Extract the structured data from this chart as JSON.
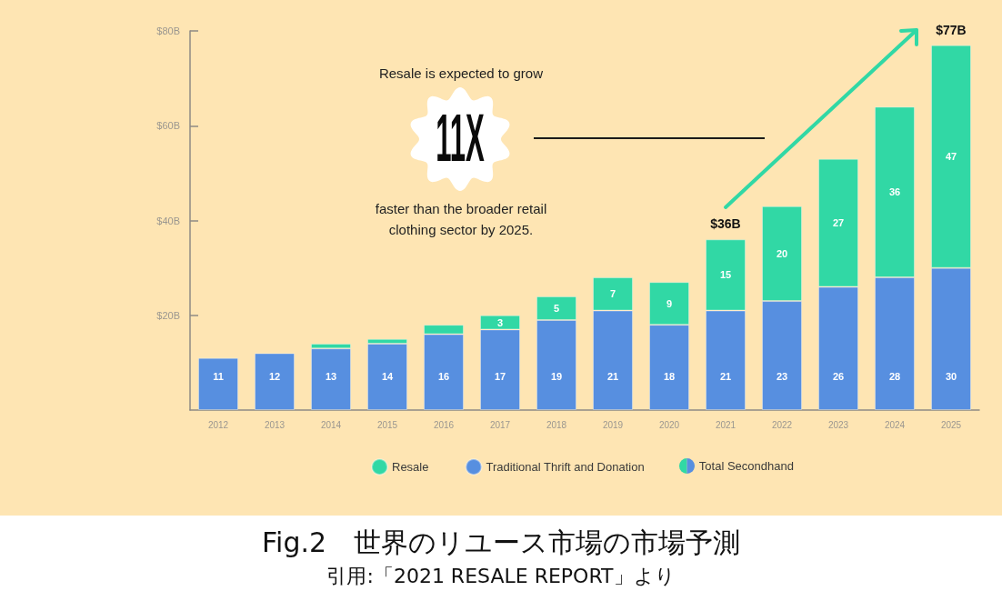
{
  "chart_data": {
    "type": "bar",
    "title": "Fig.2　世界のリユース市場の市場予測",
    "categories": [
      "2012",
      "2013",
      "2014",
      "2015",
      "2016",
      "2017",
      "2018",
      "2019",
      "2020",
      "2021",
      "2022",
      "2023",
      "2024",
      "2025"
    ],
    "series": [
      {
        "name": "Traditional Thrift and Donation",
        "color": "#578fe0",
        "values": [
          11,
          12,
          13,
          14,
          16,
          17,
          19,
          21,
          18,
          21,
          23,
          26,
          28,
          30
        ],
        "value_labels": [
          "11",
          "12",
          "13",
          "14",
          "16",
          "17",
          "19",
          "21",
          "18",
          "21",
          "23",
          "26",
          "28",
          "30"
        ]
      },
      {
        "name": "Resale",
        "color": "#31d8a5",
        "values": [
          null,
          null,
          1,
          1,
          2,
          3,
          5,
          7,
          9,
          15,
          20,
          27,
          36,
          47
        ],
        "value_labels": [
          null,
          null,
          null,
          null,
          null,
          "3",
          "5",
          "7",
          "9",
          "15",
          "20",
          "27",
          "36",
          "47"
        ]
      }
    ],
    "stacked": true,
    "totals": [
      null,
      null,
      null,
      null,
      null,
      null,
      null,
      null,
      null,
      "$36B",
      null,
      null,
      null,
      "$77B"
    ],
    "ylim": [
      0,
      80
    ],
    "yticks": [
      {
        "value": 20,
        "label": "$20B"
      },
      {
        "value": 40,
        "label": "$40B"
      },
      {
        "value": 60,
        "label": "$60B"
      },
      {
        "value": 80,
        "label": "$80B"
      }
    ],
    "legend": "bottom",
    "annotations": [
      "Resale is expected to grow",
      "11X",
      "faster than the broader retail clothing sector by 2025.",
      "Total Secondhand",
      "引用:「2021 RESALE REPORT」より"
    ]
  }
}
